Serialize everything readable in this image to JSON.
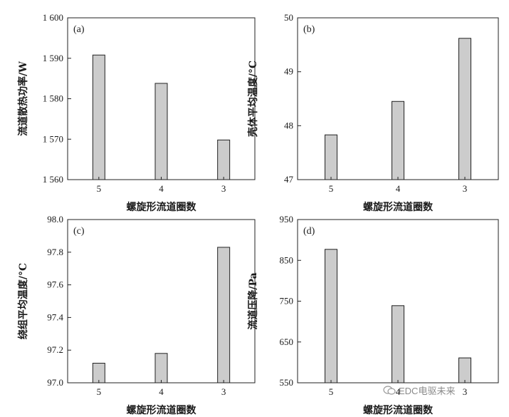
{
  "chart_data": [
    {
      "type": "bar",
      "panel_label": "(a)",
      "categories": [
        "5",
        "4",
        "3"
      ],
      "values": [
        1590.8,
        1583.8,
        1569.8
      ],
      "ylim": [
        1560,
        1600
      ],
      "yticks": [
        1560,
        1570,
        1580,
        1590,
        1600
      ],
      "ytick_labels": [
        "1 560",
        "1 570",
        "1 580",
        "1 590",
        "1 600"
      ],
      "xlabel": "螺旋形流道圈数",
      "ylabel": "流道散热功率/W"
    },
    {
      "type": "bar",
      "panel_label": "(b)",
      "categories": [
        "5",
        "4",
        "3"
      ],
      "values": [
        47.83,
        48.45,
        49.62
      ],
      "ylim": [
        47,
        50
      ],
      "yticks": [
        47,
        48,
        49,
        50
      ],
      "ytick_labels": [
        "47",
        "48",
        "49",
        "50"
      ],
      "xlabel": "螺旋形流道圈数",
      "ylabel": "壳体平均温度/°C"
    },
    {
      "type": "bar",
      "panel_label": "(c)",
      "categories": [
        "5",
        "4",
        "3"
      ],
      "values": [
        97.12,
        97.18,
        97.83
      ],
      "ylim": [
        97.0,
        98.0
      ],
      "yticks": [
        97.0,
        97.2,
        97.4,
        97.6,
        97.8,
        98.0
      ],
      "ytick_labels": [
        "97.0",
        "97.2",
        "97.4",
        "97.6",
        "97.8",
        "98.0"
      ],
      "xlabel": "螺旋形流道圈数",
      "ylabel": "绕组平均温度/°C"
    },
    {
      "type": "bar",
      "panel_label": "(d)",
      "categories": [
        "5",
        "4",
        "3"
      ],
      "values": [
        877,
        739,
        611
      ],
      "ylim": [
        550,
        950
      ],
      "yticks": [
        550,
        650,
        750,
        850,
        950
      ],
      "ytick_labels": [
        "550",
        "650",
        "750",
        "850",
        "950"
      ],
      "xlabel": "螺旋形流道圈数",
      "ylabel": "流道压降/Pa"
    }
  ],
  "watermark": {
    "text": "EDC电驱未来",
    "icon": "wechat-icon"
  },
  "colors": {
    "bar_fill": "#cccccc",
    "bar_stroke": "#222222"
  }
}
